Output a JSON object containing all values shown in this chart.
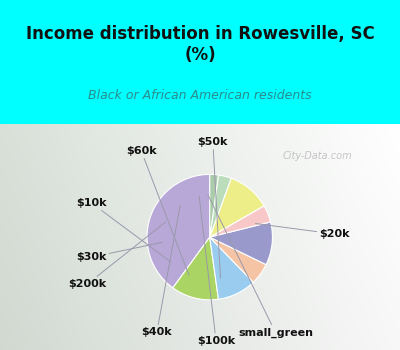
{
  "title": "Income distribution in Rowesville, SC\n(%)",
  "subtitle": "Black or African American residents",
  "title_color": "#111111",
  "subtitle_color": "#2a8c8c",
  "bg_cyan": "#00FFFF",
  "watermark": "City-Data.com",
  "labels": [
    "$20k",
    "$50k",
    "$60k",
    "$10k",
    "$30k",
    "$200k",
    "$40k",
    "$100k",
    "small_green"
  ],
  "values": [
    36,
    11,
    9,
    5,
    10,
    4,
    10,
    3,
    2
  ],
  "colors": [
    "#b8a8d8",
    "#aad464",
    "#99ccee",
    "#f4c4a4",
    "#9999cc",
    "#f8c8c8",
    "#eeee88",
    "#bbddbb",
    "#aaccaa"
  ],
  "startangle": 90,
  "label_fontsize": 8,
  "title_fontsize": 12,
  "subtitle_fontsize": 9
}
